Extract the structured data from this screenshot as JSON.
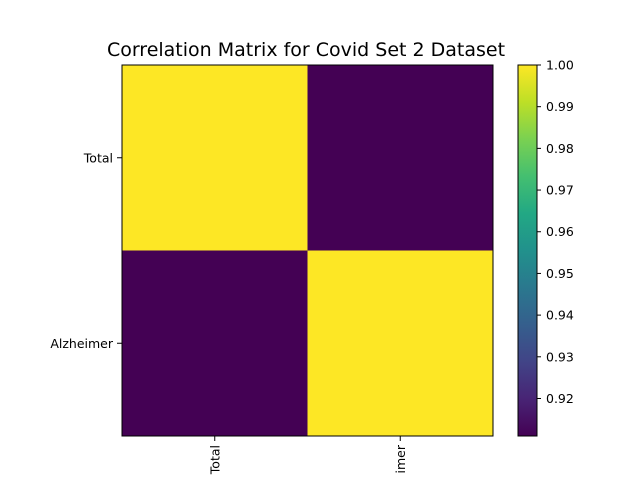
{
  "chart_data": {
    "type": "heatmap",
    "title": "Correlation Matrix for Covid Set 2 Dataset",
    "row_labels": [
      "Total",
      "Alzheimer"
    ],
    "col_labels": [
      "Total",
      "imer"
    ],
    "values": [
      [
        1.0,
        0.911
      ],
      [
        0.911,
        1.0
      ]
    ],
    "colorbar": {
      "min": 0.911,
      "max": 1.0,
      "ticks": [
        0.92,
        0.93,
        0.94,
        0.95,
        0.96,
        0.97,
        0.98,
        0.99,
        1.0
      ],
      "tick_labels": [
        "0.92",
        "0.93",
        "0.94",
        "0.95",
        "0.96",
        "0.97",
        "0.98",
        "0.99",
        "1.00"
      ],
      "colormap": "viridis"
    },
    "grid": false
  }
}
